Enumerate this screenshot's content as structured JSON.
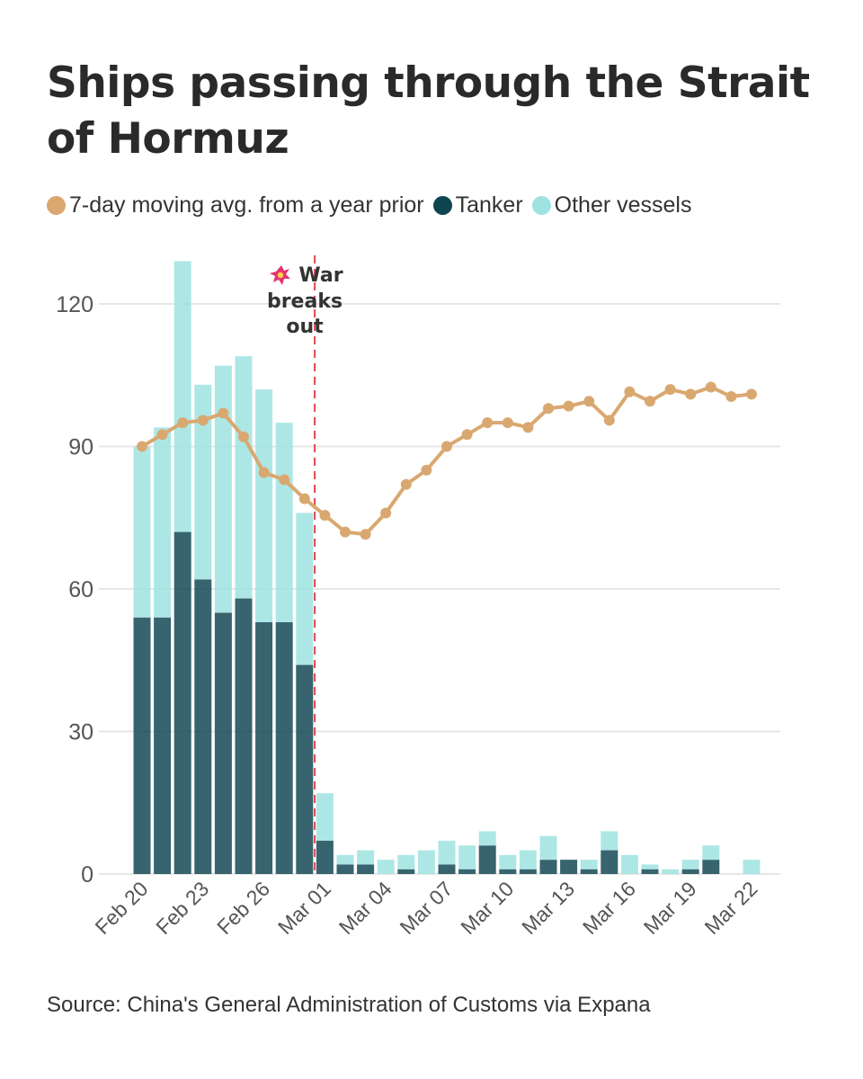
{
  "title": "Ships passing through the Strait of Hormuz",
  "source": "Source: China's General Administration of Customs via Expana",
  "colors": {
    "avg": "#d9a870",
    "tanker": "#0f4451",
    "other": "#9fe3e1",
    "war_line": "#e0474c",
    "grid": "#e6e6e6"
  },
  "legend": [
    {
      "label": "7-day moving avg. from a year prior",
      "color": "#d9a870"
    },
    {
      "label": "Tanker",
      "color": "#0f4451"
    },
    {
      "label": "Other vessels",
      "color": "#9fe3e1"
    }
  ],
  "chart_data": {
    "type": "bar",
    "stacked": true,
    "categories": [
      "Feb 20",
      "Feb 21",
      "Feb 22",
      "Feb 23",
      "Feb 24",
      "Feb 25",
      "Feb 26",
      "Feb 27",
      "Feb 28",
      "Mar 01",
      "Mar 02",
      "Mar 03",
      "Mar 04",
      "Mar 05",
      "Mar 06",
      "Mar 07",
      "Mar 08",
      "Mar 09",
      "Mar 10",
      "Mar 11",
      "Mar 12",
      "Mar 13",
      "Mar 14",
      "Mar 15",
      "Mar 16",
      "Mar 17",
      "Mar 18",
      "Mar 19",
      "Mar 20",
      "Mar 21",
      "Mar 22"
    ],
    "tick_labels": [
      "Feb 20",
      "Feb 23",
      "Feb 26",
      "Mar 01",
      "Mar 04",
      "Mar 07",
      "Mar 10",
      "Mar 13",
      "Mar 16",
      "Mar 19",
      "Mar 22"
    ],
    "series": [
      {
        "name": "Tanker",
        "values": [
          54,
          54,
          72,
          62,
          55,
          58,
          53,
          53,
          44,
          7,
          2,
          2,
          0,
          1,
          0,
          2,
          1,
          6,
          1,
          1,
          3,
          3,
          1,
          5,
          0,
          1,
          0,
          1,
          3,
          0,
          0
        ]
      },
      {
        "name": "Other vessels",
        "values": [
          36,
          40,
          57,
          41,
          52,
          51,
          49,
          42,
          32,
          10,
          2,
          3,
          3,
          3,
          5,
          5,
          5,
          3,
          3,
          4,
          5,
          0,
          2,
          4,
          4,
          1,
          1,
          2,
          3,
          0,
          3
        ]
      },
      {
        "name": "7-day moving avg. from a year prior",
        "type": "line",
        "values": [
          90,
          92.5,
          95,
          95.5,
          97,
          92,
          84.5,
          83,
          79,
          75.5,
          72,
          71.5,
          76,
          82,
          85,
          90,
          92.5,
          95,
          95,
          94,
          98,
          98.5,
          99.5,
          95.5,
          101.5,
          99.5,
          102,
          101,
          102.5,
          100.5,
          101
        ]
      }
    ],
    "ylim": [
      0,
      130
    ],
    "yticks": [
      0,
      30,
      60,
      90,
      120
    ],
    "grid": true,
    "annotation": {
      "category": "Mar 01",
      "lines": [
        "War",
        "breaks",
        "out"
      ]
    }
  }
}
